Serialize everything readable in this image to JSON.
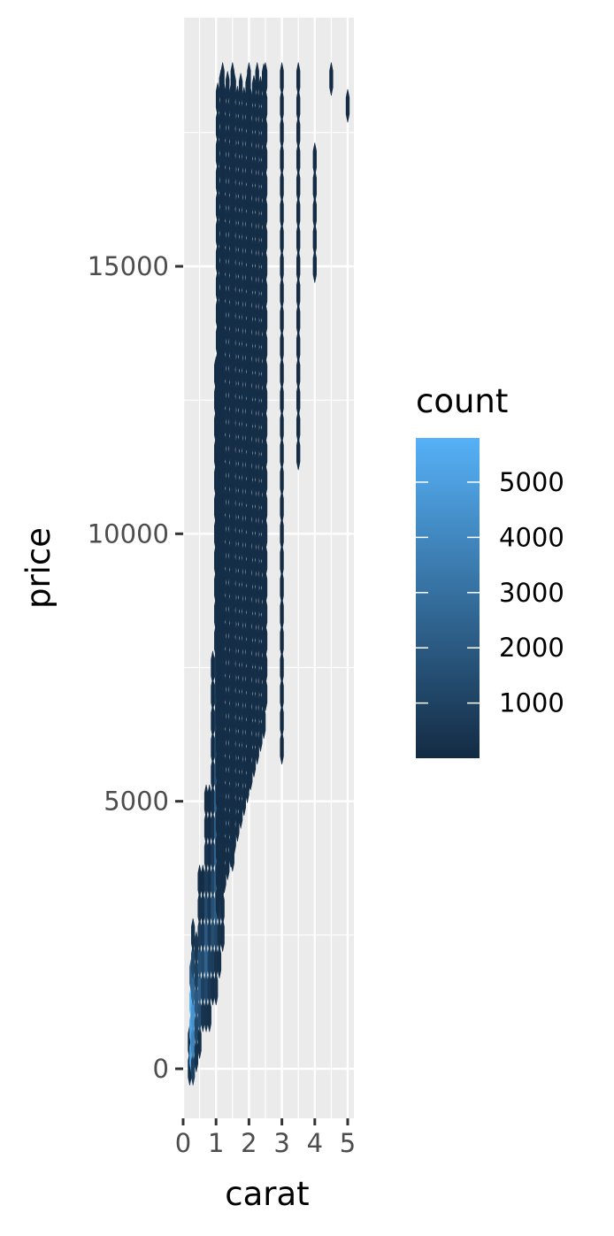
{
  "chart_data": {
    "type": "heatmap",
    "subtype": "hexbin",
    "title": "",
    "xlabel": "carat",
    "ylabel": "price",
    "xlim": [
      -0.05,
      5.25
    ],
    "ylim": [
      -1000,
      19600
    ],
    "x_ticks": [
      0,
      1,
      2,
      3,
      4,
      5
    ],
    "x_tick_labels": [
      "0",
      "1",
      "2",
      "3",
      "4",
      "5"
    ],
    "y_ticks": [
      0,
      5000,
      10000,
      15000
    ],
    "y_tick_labels": [
      "0",
      "5000",
      "10000",
      "15000"
    ],
    "grid": true,
    "background": "#EBEBEB",
    "legend": {
      "title": "count",
      "position": "right",
      "type": "colorbar",
      "low_color": "#132B43",
      "high_color": "#56B1F7",
      "range": [
        1,
        5800
      ],
      "breaks": [
        1000,
        2000,
        3000,
        4000,
        5000
      ],
      "break_labels": [
        "1000",
        "2000",
        "3000",
        "4000",
        "5000"
      ]
    },
    "bin_width": {
      "carat": 0.1,
      "price": 500
    },
    "columns": [
      {
        "carat": 0.2,
        "price_min": 0,
        "price_max": 500,
        "counts": [
          180
        ]
      },
      {
        "carat": 0.25,
        "price_min": 250,
        "price_max": 1750,
        "counts": [
          5200,
          5800,
          2200
        ]
      },
      {
        "carat": 0.3,
        "price_min": 0,
        "price_max": 2500,
        "counts": [
          900,
          3800,
          4500,
          2600,
          1300,
          300
        ]
      },
      {
        "carat": 0.4,
        "price_min": 250,
        "price_max": 2250,
        "counts": [
          300,
          1200,
          1900,
          900,
          500
        ]
      },
      {
        "carat": 0.5,
        "price_min": 500,
        "price_max": 3500,
        "counts": [
          200,
          1500,
          2200,
          1600,
          700,
          300,
          150
        ]
      },
      {
        "carat": 0.6,
        "price_min": 1000,
        "price_max": 3500,
        "counts": [
          400,
          900,
          1300,
          600,
          300,
          100
        ]
      },
      {
        "carat": 0.7,
        "price_min": 1000,
        "price_max": 5000,
        "counts": [
          300,
          1200,
          2400,
          2000,
          1400,
          700,
          300,
          150,
          80
        ]
      },
      {
        "carat": 0.8,
        "price_min": 1000,
        "price_max": 5000,
        "counts": [
          200,
          600,
          900,
          700,
          500,
          300,
          150,
          80,
          40
        ]
      },
      {
        "carat": 0.9,
        "price_min": 1500,
        "price_max": 7500,
        "counts": [
          200,
          800,
          1500,
          1700,
          1200,
          700,
          400,
          250,
          150,
          100,
          60,
          40,
          20
        ]
      },
      {
        "carat": 1.0,
        "price_min": 1500,
        "price_max": 13000,
        "counts": [
          300,
          1200,
          2200,
          2600,
          2400,
          1800,
          1200,
          800,
          500,
          300,
          200,
          120,
          80,
          50,
          40,
          30,
          20
        ]
      },
      {
        "carat": 1.1,
        "price_min": 2000,
        "price_max": 14000,
        "counts": [
          200,
          600,
          900,
          1000,
          900,
          700,
          500,
          350,
          250,
          180,
          120,
          80,
          50,
          30
        ]
      },
      {
        "carat": 1.2,
        "price_min": 2500,
        "price_max": 18500,
        "counts": [
          150,
          500,
          800,
          900,
          800,
          650,
          500,
          380,
          280,
          200,
          150,
          100,
          80,
          60,
          40,
          30
        ]
      },
      {
        "carat": 1.5,
        "price_min": 4000,
        "price_max": 18500,
        "counts": [
          200,
          500,
          900,
          1100,
          900,
          700,
          500,
          400,
          300,
          200,
          150,
          100
        ]
      },
      {
        "carat": 2.0,
        "price_min": 5500,
        "price_max": 18500,
        "counts": [
          150,
          400,
          700,
          800,
          700,
          600,
          500,
          400,
          300,
          200
        ]
      },
      {
        "carat": 2.5,
        "price_min": 7000,
        "price_max": 18500,
        "counts": [
          30,
          60,
          80,
          90,
          80,
          60,
          40
        ]
      },
      {
        "carat": 3.0,
        "price_min": 6000,
        "price_max": 18500,
        "counts": [
          5,
          8,
          6,
          4
        ]
      },
      {
        "carat": 3.5,
        "price_min": 11500,
        "price_max": 18500,
        "counts": [
          2,
          1,
          1
        ]
      },
      {
        "carat": 4.0,
        "price_min": 15000,
        "price_max": 17000,
        "counts": [
          1,
          1
        ]
      },
      {
        "carat": 4.5,
        "price_min": 18500,
        "price_max": 18500,
        "counts": [
          1
        ]
      },
      {
        "carat": 5.0,
        "price_min": 18000,
        "price_max": 18000,
        "counts": [
          1
        ]
      }
    ]
  }
}
